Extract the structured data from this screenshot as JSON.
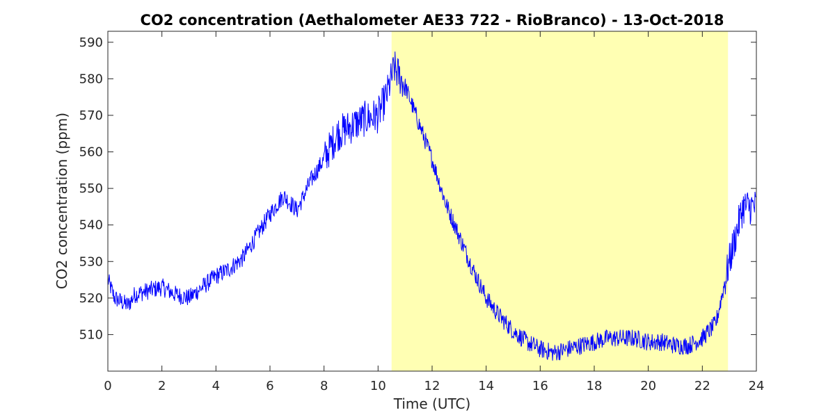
{
  "chart_data": {
    "type": "line",
    "title": "CO2 concentration (Aethalometer AE33 722 - RioBranco) - 13-Oct-2018",
    "xlabel": "Time (UTC)",
    "ylabel": "CO2 concentration (ppm)",
    "xlim": [
      0,
      24
    ],
    "ylim": [
      500,
      593
    ],
    "xticks": [
      0,
      2,
      4,
      6,
      8,
      10,
      12,
      14,
      16,
      18,
      20,
      22,
      24
    ],
    "yticks": [
      510,
      520,
      530,
      540,
      550,
      560,
      570,
      580,
      590
    ],
    "grid": false,
    "shaded_region": {
      "x_start": 10.5,
      "x_end": 22.95,
      "color": "#ffffb3"
    },
    "series": [
      {
        "color": "#0000ff",
        "x": [
          0.0,
          0.25,
          0.5,
          0.75,
          1.0,
          1.5,
          2.0,
          2.5,
          3.0,
          3.5,
          4.0,
          4.5,
          5.0,
          5.5,
          6.0,
          6.5,
          7.0,
          7.5,
          8.0,
          8.5,
          9.0,
          9.5,
          10.0,
          10.3,
          10.6,
          11.0,
          11.5,
          12.0,
          12.5,
          13.0,
          13.5,
          14.0,
          14.5,
          15.0,
          15.5,
          16.0,
          16.5,
          17.0,
          17.5,
          18.0,
          18.5,
          19.0,
          19.5,
          20.0,
          20.5,
          21.0,
          21.5,
          22.0,
          22.5,
          23.0,
          23.5,
          24.0
        ],
        "y": [
          525,
          520,
          519,
          518,
          521,
          522,
          523,
          521,
          520,
          523,
          526,
          528,
          531,
          537,
          543,
          548,
          544,
          552,
          558,
          565,
          567,
          569,
          570,
          575,
          583,
          578,
          568,
          558,
          546,
          537,
          528,
          520,
          515,
          511,
          508,
          506,
          505,
          506,
          507,
          508,
          509,
          509,
          509,
          508,
          508,
          507,
          507,
          509,
          513,
          530,
          545,
          545
        ]
      }
    ]
  }
}
